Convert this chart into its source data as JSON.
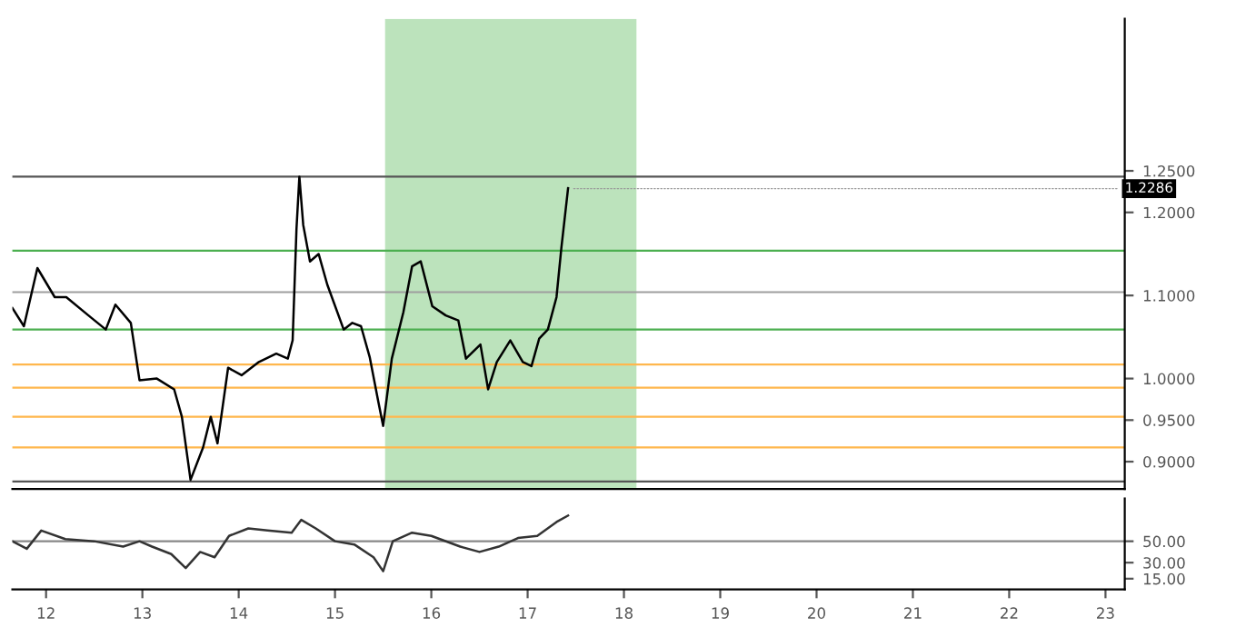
{
  "chart_data": [
    {
      "type": "line",
      "xlim": [
        11.65,
        23.2
      ],
      "ylim": [
        0.867,
        1.433
      ],
      "yticks": [
        {
          "value": 0.9,
          "label": "0.9000"
        },
        {
          "value": 0.95,
          "label": "0.9500"
        },
        {
          "value": 1.0,
          "label": "1.0000"
        },
        {
          "value": 1.1,
          "label": "1.1000"
        },
        {
          "value": 1.2,
          "label": "1.2000"
        },
        {
          "value": 1.25,
          "label": "1.2500"
        }
      ],
      "tick_labels": "y",
      "grid": false,
      "series": [
        {
          "color": "#000000",
          "x": [
            11.65,
            11.77,
            11.91,
            12.09,
            12.21,
            12.44,
            12.62,
            12.72,
            12.88,
            12.97,
            13.15,
            13.33,
            13.41,
            13.5,
            13.63,
            13.71,
            13.78,
            13.89,
            14.03,
            14.21,
            14.39,
            14.51,
            14.56,
            14.6,
            14.63,
            14.67,
            14.74,
            14.83,
            14.92,
            15.09,
            15.18,
            15.27,
            15.36,
            15.45,
            15.5,
            15.59,
            15.71,
            15.8,
            15.89,
            16.01,
            16.15,
            16.28,
            16.36,
            16.51,
            16.59,
            16.68,
            16.82,
            16.95,
            17.04,
            17.12,
            17.21,
            17.3,
            17.35,
            17.42
          ],
          "values": [
            1.085,
            1.063,
            1.133,
            1.098,
            1.098,
            1.076,
            1.059,
            1.089,
            1.067,
            0.998,
            1.0,
            0.987,
            0.954,
            0.878,
            0.917,
            0.954,
            0.922,
            1.013,
            1.004,
            1.02,
            1.03,
            1.024,
            1.046,
            1.18,
            1.243,
            1.185,
            1.141,
            1.15,
            1.113,
            1.059,
            1.067,
            1.063,
            1.026,
            0.972,
            0.943,
            1.024,
            1.08,
            1.135,
            1.141,
            1.087,
            1.076,
            1.07,
            1.024,
            1.041,
            0.987,
            1.02,
            1.046,
            1.02,
            1.015,
            1.048,
            1.059,
            1.098,
            1.157,
            1.229
          ]
        }
      ],
      "ref_lines": [
        {
          "axis": "y",
          "value": 1.243,
          "color": "#555555"
        },
        {
          "axis": "y",
          "value": 1.154,
          "color": "#4caf50"
        },
        {
          "axis": "y",
          "value": 1.104,
          "color": "#9e9e9e"
        },
        {
          "axis": "y",
          "value": 1.059,
          "color": "#4caf50"
        },
        {
          "axis": "y",
          "value": 1.017,
          "color": "#ffb74d"
        },
        {
          "axis": "y",
          "value": 0.989,
          "color": "#ffb74d"
        },
        {
          "axis": "y",
          "value": 0.954,
          "color": "#ffb74d"
        },
        {
          "axis": "y",
          "value": 0.917,
          "color": "#ffb74d"
        },
        {
          "axis": "y",
          "value": 0.876,
          "color": "#555555"
        }
      ],
      "bands": [
        {
          "axis": "x",
          "from": 15.52,
          "to": 18.13,
          "color": "#8fd18f"
        }
      ],
      "annotations": [
        {
          "text": "1.2286",
          "x": 17.42,
          "y": 1.2286
        }
      ]
    },
    {
      "type": "line",
      "xlim": [
        11.65,
        23.2
      ],
      "ylim": [
        5,
        90
      ],
      "yticks": [
        {
          "value": 15,
          "label": "15.00"
        },
        {
          "value": 30,
          "label": "30.00"
        },
        {
          "value": 50,
          "label": "50.00"
        }
      ],
      "xticks": [
        12,
        13,
        14,
        15,
        16,
        17,
        18,
        19,
        20,
        21,
        22,
        23
      ],
      "grid": false,
      "series": [
        {
          "color": "#333333",
          "x": [
            11.65,
            11.8,
            11.95,
            12.2,
            12.5,
            12.8,
            12.97,
            13.1,
            13.3,
            13.45,
            13.6,
            13.75,
            13.9,
            14.1,
            14.3,
            14.55,
            14.65,
            14.8,
            15.0,
            15.2,
            15.4,
            15.5,
            15.6,
            15.8,
            16.0,
            16.3,
            16.5,
            16.7,
            16.9,
            17.1,
            17.3,
            17.42
          ],
          "values": [
            50,
            43,
            60,
            52,
            50,
            45,
            50,
            45,
            38,
            25,
            40,
            35,
            55,
            62,
            60,
            58,
            70,
            62,
            50,
            47,
            35,
            22,
            50,
            58,
            55,
            45,
            40,
            45,
            53,
            55,
            68,
            74
          ]
        }
      ],
      "ref_lines": [
        {
          "axis": "y",
          "value": 50,
          "color": "#888888"
        }
      ]
    }
  ]
}
